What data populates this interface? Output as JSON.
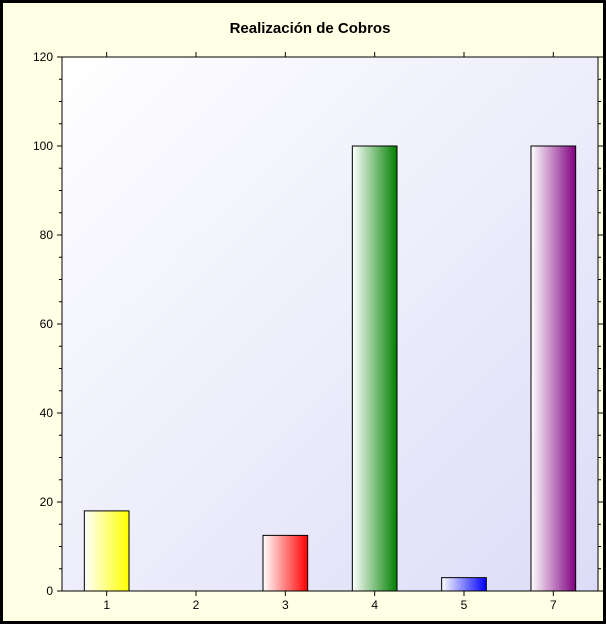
{
  "chart_data": {
    "type": "bar",
    "title": "Realización de Cobros",
    "xlabel": "",
    "ylabel": "",
    "categories": [
      "1",
      "2",
      "3",
      "4",
      "5",
      "7"
    ],
    "values": [
      18,
      0,
      12.5,
      100,
      3,
      100
    ],
    "bar_colors": [
      "#ffff00",
      "#ffff00",
      "#ff0000",
      "#008000",
      "#0000ff",
      "#800080"
    ],
    "ylim": [
      0,
      120
    ],
    "yticks": [
      0,
      20,
      40,
      60,
      80,
      100,
      120
    ],
    "grid": false,
    "legend": "none"
  }
}
